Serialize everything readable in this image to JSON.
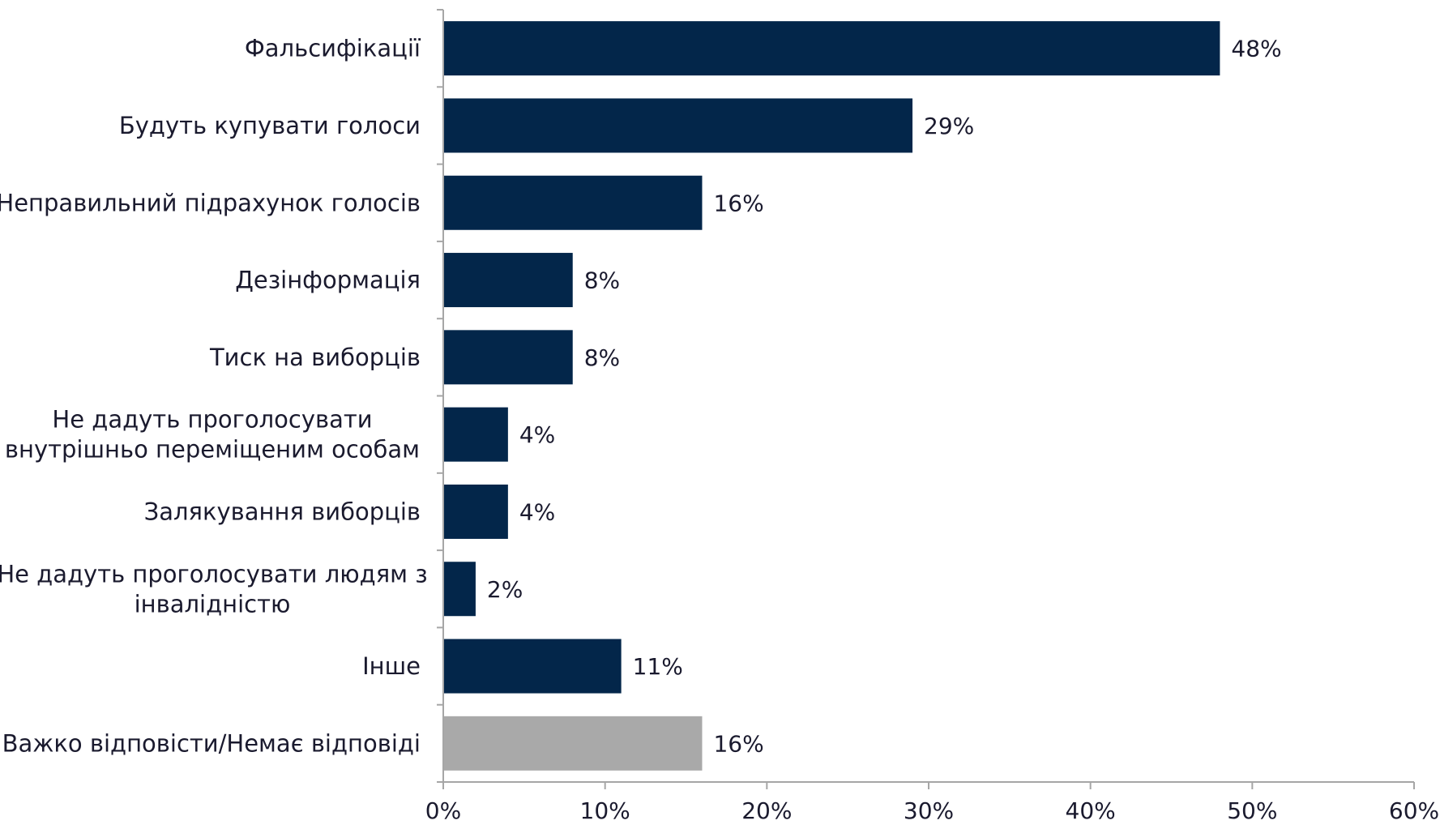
{
  "chart_data": {
    "type": "bar",
    "orientation": "horizontal",
    "categories": [
      [
        "Фальсифікації"
      ],
      [
        "Будуть купувати голоси"
      ],
      [
        "Неправильний підрахунок голосів"
      ],
      [
        "Дезінформація"
      ],
      [
        "Тиск на виборців"
      ],
      [
        "Не дадуть проголосувати",
        "внутрішньо переміщеним особам"
      ],
      [
        "Залякування виборців"
      ],
      [
        "Не дадуть проголосувати людям з",
        "інвалідністю"
      ],
      [
        "Інше"
      ],
      [
        "Важко відповісти/Немає відповіді"
      ]
    ],
    "values": [
      48,
      29,
      16,
      8,
      8,
      4,
      4,
      2,
      11,
      16
    ],
    "value_labels": [
      "48%",
      "29%",
      "16%",
      "8%",
      "8%",
      "4%",
      "4%",
      "2%",
      "11%",
      "16%"
    ],
    "bar_colors": [
      "#03264a",
      "#03264a",
      "#03264a",
      "#03264a",
      "#03264a",
      "#03264a",
      "#03264a",
      "#03264a",
      "#03264a",
      "#a9a9a9"
    ],
    "xlim": [
      0,
      60
    ],
    "x_ticks": [
      0,
      10,
      20,
      30,
      40,
      50,
      60
    ],
    "x_tick_labels": [
      "0%",
      "10%",
      "20%",
      "30%",
      "40%",
      "50%",
      "60%"
    ],
    "grid": false,
    "axis_color": "#a6a6a6",
    "text_color": "#1a1a2e"
  }
}
